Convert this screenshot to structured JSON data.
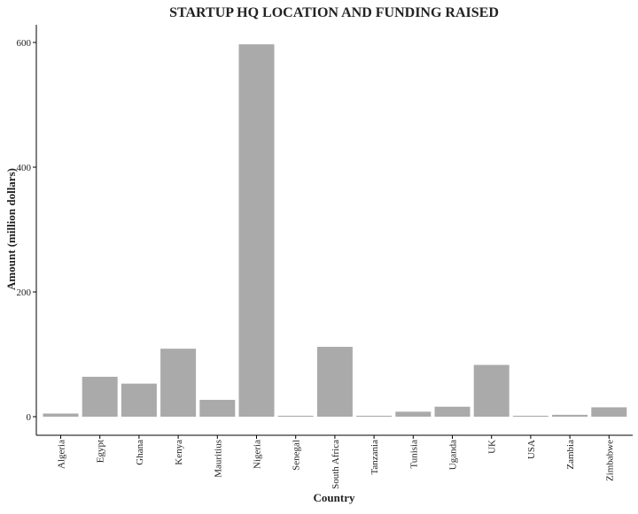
{
  "chart_data": {
    "type": "bar",
    "title": "STARTUP HQ LOCATION AND FUNDING RAISED",
    "xlabel": "Country",
    "ylabel": "Amount (million dollars)",
    "categories": [
      "Algeria",
      "Egypt",
      "Ghana",
      "Kenya",
      "Mauritius",
      "Nigeria",
      "Senegal",
      "South Africa",
      "Tanzania",
      "Tunisia",
      "Uganda",
      "UK",
      "USA",
      "Zambia",
      "Zimbabwe"
    ],
    "values": [
      5,
      64,
      53,
      109,
      27,
      597,
      1.5,
      112,
      1.5,
      8,
      16,
      83,
      1.5,
      3,
      15
    ],
    "yticks": [
      0,
      200,
      400,
      600
    ],
    "ylim": [
      0,
      600
    ],
    "grid": false,
    "bar_color": "#aaaaaa"
  }
}
